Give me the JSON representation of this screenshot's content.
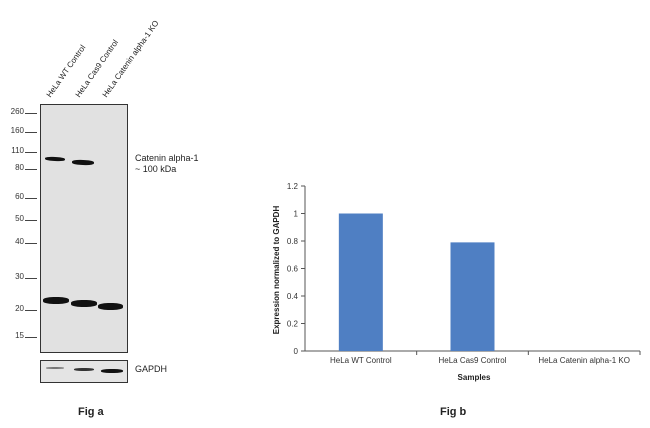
{
  "fig_a": {
    "caption": "Fig a",
    "lanes": [
      "HeLa WT Control",
      "HeLa Cas9 Control",
      "HeLa Catenin alpha-1 KO"
    ],
    "markers": [
      "260",
      "160",
      "110",
      "80",
      "60",
      "50",
      "40",
      "30",
      "20",
      "15"
    ],
    "target_label_line1": "Catenin alpha-1",
    "target_label_line2": "~ 100 kDa",
    "loading_label": "GAPDH"
  },
  "fig_b": {
    "caption": "Fig b"
  },
  "chart_data": {
    "type": "bar",
    "categories": [
      "HeLa WT Control",
      "HeLa Cas9 Control",
      "HeLa Catenin alpha-1 KO"
    ],
    "values": [
      1.0,
      0.79,
      0.0
    ],
    "xlabel": "Samples",
    "ylabel": "Expression  normalized to GAPDH",
    "ylim": [
      0,
      1.2
    ],
    "yticks": [
      "0",
      "0.2",
      "0.4",
      "0.6",
      "0.8",
      "1",
      "1.2"
    ],
    "grid": false,
    "bar_color": "#4f7fc3"
  }
}
